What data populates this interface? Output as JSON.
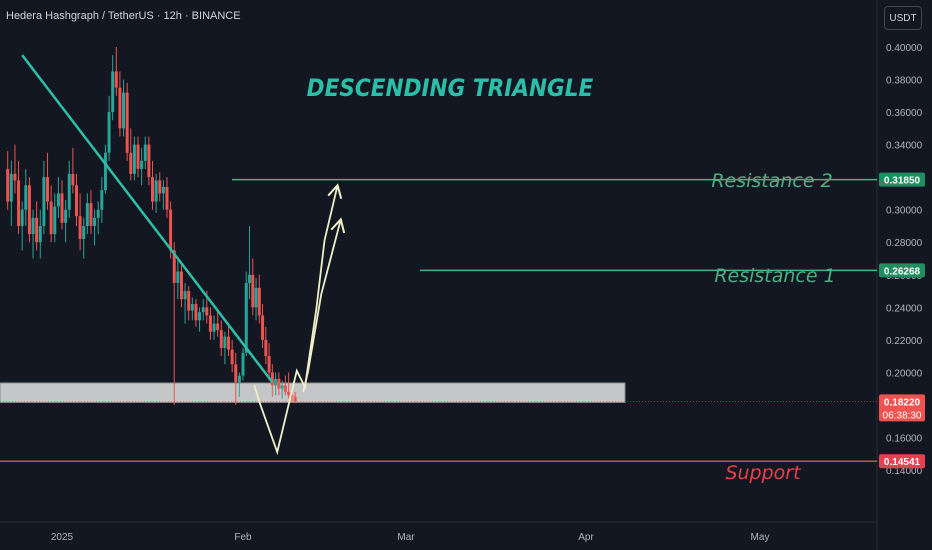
{
  "header": {
    "symbol_line": "Hedera Hashgraph / TetherUS · 12h · BINANCE",
    "currency_button": "USDT"
  },
  "annotations": {
    "pattern_title": "DESCENDING TRIANGLE",
    "resistance2_label": "Resistance 2",
    "resistance1_label": "Resistance 1",
    "support_label": "Support"
  },
  "price_tags": {
    "resistance2": "0.31850",
    "resistance1": "0.26268",
    "current_price": "0.18220",
    "countdown": "06:38:30",
    "support": "0.14541"
  },
  "colors": {
    "background": "#131722",
    "up": "#26a69a",
    "down": "#ef5350",
    "resistance_line": "#4caf82",
    "trendline": "#2bbfa9",
    "support_line": "#e8404e",
    "projection": "#f0f0c8",
    "zone": "#d9d9d9"
  },
  "chart_data": {
    "type": "candlestick",
    "y_axis": {
      "ticks": [
        "0.40000",
        "0.38000",
        "0.36000",
        "0.34000",
        "0.32000",
        "0.30000",
        "0.28000",
        "0.26000",
        "0.24000",
        "0.22000",
        "0.20000",
        "0.16000",
        "0.14000"
      ],
      "ylim": [
        0.135,
        0.405
      ]
    },
    "x_axis": {
      "ticks": [
        "2025",
        "Feb",
        "Mar",
        "Apr",
        "May"
      ]
    },
    "levels": {
      "resistance2": 0.3185,
      "resistance1": 0.26268,
      "support": 0.14541,
      "current": 0.1822,
      "support_zone": [
        0.1815,
        0.1935
      ]
    },
    "trendline": [
      [
        -0.22,
        0.395
      ],
      [
        1.18,
        0.194
      ]
    ],
    "projection_path_1": [
      [
        1.07,
        0.192
      ],
      [
        1.1,
        0.182
      ],
      [
        1.21,
        0.151
      ],
      [
        1.33,
        0.201
      ],
      [
        1.38,
        0.191
      ],
      [
        1.45,
        0.239
      ],
      [
        1.5,
        0.281
      ],
      [
        1.58,
        0.315
      ]
    ],
    "projection_path_2": [
      [
        1.4,
        0.201
      ],
      [
        1.48,
        0.248
      ],
      [
        1.6,
        0.294
      ]
    ],
    "projection_path_2_start": [
      [
        1.37,
        0.188
      ],
      [
        1.4,
        0.201
      ]
    ],
    "arrow_heads": [
      [
        1.58,
        0.315
      ],
      [
        1.6,
        0.294
      ]
    ],
    "candles_approx_month_offsets": [
      0.0,
      1.0,
      2.0
    ],
    "candles": [
      [
        -0.3,
        0.325,
        0.336,
        0.3,
        0.305
      ],
      [
        -0.28,
        0.305,
        0.33,
        0.29,
        0.322
      ],
      [
        -0.26,
        0.322,
        0.34,
        0.31,
        0.318
      ],
      [
        -0.24,
        0.318,
        0.33,
        0.285,
        0.29
      ],
      [
        -0.22,
        0.29,
        0.305,
        0.275,
        0.3
      ],
      [
        -0.2,
        0.3,
        0.325,
        0.29,
        0.315
      ],
      [
        -0.18,
        0.315,
        0.32,
        0.28,
        0.285
      ],
      [
        -0.16,
        0.285,
        0.3,
        0.27,
        0.295
      ],
      [
        -0.14,
        0.295,
        0.305,
        0.275,
        0.28
      ],
      [
        -0.12,
        0.28,
        0.3,
        0.27,
        0.29
      ],
      [
        -0.1,
        0.29,
        0.33,
        0.285,
        0.32
      ],
      [
        -0.08,
        0.32,
        0.335,
        0.3,
        0.305
      ],
      [
        -0.06,
        0.305,
        0.315,
        0.28,
        0.285
      ],
      [
        -0.04,
        0.285,
        0.31,
        0.28,
        0.302
      ],
      [
        -0.02,
        0.302,
        0.32,
        0.295,
        0.31
      ],
      [
        0.0,
        0.31,
        0.318,
        0.288,
        0.292
      ],
      [
        0.02,
        0.292,
        0.306,
        0.28,
        0.3
      ],
      [
        0.04,
        0.3,
        0.33,
        0.295,
        0.322
      ],
      [
        0.06,
        0.322,
        0.338,
        0.31,
        0.315
      ],
      [
        0.08,
        0.315,
        0.322,
        0.29,
        0.296
      ],
      [
        0.1,
        0.296,
        0.31,
        0.275,
        0.282
      ],
      [
        0.12,
        0.282,
        0.295,
        0.27,
        0.29
      ],
      [
        0.14,
        0.29,
        0.31,
        0.285,
        0.304
      ],
      [
        0.16,
        0.304,
        0.312,
        0.285,
        0.29
      ],
      [
        0.18,
        0.29,
        0.3,
        0.278,
        0.295
      ],
      [
        0.2,
        0.295,
        0.305,
        0.285,
        0.3
      ],
      [
        0.22,
        0.3,
        0.32,
        0.292,
        0.312
      ],
      [
        0.24,
        0.312,
        0.34,
        0.31,
        0.335
      ],
      [
        0.26,
        0.335,
        0.37,
        0.33,
        0.36
      ],
      [
        0.28,
        0.36,
        0.395,
        0.355,
        0.385
      ],
      [
        0.3,
        0.385,
        0.4,
        0.37,
        0.375
      ],
      [
        0.32,
        0.375,
        0.385,
        0.345,
        0.35
      ],
      [
        0.34,
        0.35,
        0.38,
        0.345,
        0.372
      ],
      [
        0.36,
        0.372,
        0.378,
        0.33,
        0.335
      ],
      [
        0.38,
        0.335,
        0.35,
        0.318,
        0.322
      ],
      [
        0.4,
        0.322,
        0.345,
        0.318,
        0.34
      ],
      [
        0.42,
        0.34,
        0.345,
        0.32,
        0.325
      ],
      [
        0.44,
        0.325,
        0.338,
        0.315,
        0.33
      ],
      [
        0.46,
        0.33,
        0.345,
        0.325,
        0.34
      ],
      [
        0.48,
        0.34,
        0.345,
        0.315,
        0.32
      ],
      [
        0.5,
        0.32,
        0.33,
        0.3,
        0.305
      ],
      [
        0.52,
        0.305,
        0.322,
        0.298,
        0.318
      ],
      [
        0.54,
        0.318,
        0.323,
        0.305,
        0.31
      ],
      [
        0.56,
        0.31,
        0.318,
        0.3,
        0.314
      ],
      [
        0.58,
        0.314,
        0.32,
        0.295,
        0.3
      ],
      [
        0.6,
        0.3,
        0.305,
        0.27,
        0.275
      ],
      [
        0.62,
        0.275,
        0.28,
        0.18,
        0.255
      ],
      [
        0.64,
        0.255,
        0.27,
        0.245,
        0.262
      ],
      [
        0.66,
        0.262,
        0.268,
        0.24,
        0.245
      ],
      [
        0.68,
        0.245,
        0.255,
        0.23,
        0.25
      ],
      [
        0.7,
        0.25,
        0.253,
        0.232,
        0.238
      ],
      [
        0.72,
        0.238,
        0.246,
        0.232,
        0.242
      ],
      [
        0.74,
        0.242,
        0.245,
        0.228,
        0.232
      ],
      [
        0.76,
        0.232,
        0.24,
        0.225,
        0.237
      ],
      [
        0.78,
        0.237,
        0.245,
        0.232,
        0.24
      ],
      [
        0.8,
        0.24,
        0.25,
        0.23,
        0.235
      ],
      [
        0.82,
        0.235,
        0.24,
        0.22,
        0.225
      ],
      [
        0.84,
        0.225,
        0.235,
        0.22,
        0.23
      ],
      [
        0.86,
        0.23,
        0.238,
        0.222,
        0.226
      ],
      [
        0.88,
        0.226,
        0.232,
        0.21,
        0.215
      ],
      [
        0.9,
        0.215,
        0.225,
        0.205,
        0.222
      ],
      [
        0.92,
        0.222,
        0.228,
        0.21,
        0.214
      ],
      [
        0.94,
        0.214,
        0.22,
        0.2,
        0.205
      ],
      [
        0.96,
        0.205,
        0.212,
        0.18,
        0.194
      ],
      [
        0.98,
        0.194,
        0.2,
        0.185,
        0.198
      ],
      [
        1.0,
        0.198,
        0.215,
        0.195,
        0.212
      ],
      [
        1.02,
        0.212,
        0.262,
        0.21,
        0.255
      ],
      [
        1.04,
        0.255,
        0.29,
        0.245,
        0.26
      ],
      [
        1.06,
        0.26,
        0.27,
        0.235,
        0.24
      ],
      [
        1.08,
        0.24,
        0.258,
        0.232,
        0.252
      ],
      [
        1.1,
        0.252,
        0.26,
        0.23,
        0.235
      ],
      [
        1.12,
        0.235,
        0.242,
        0.215,
        0.22
      ],
      [
        1.14,
        0.22,
        0.228,
        0.205,
        0.21
      ],
      [
        1.16,
        0.21,
        0.218,
        0.195,
        0.2
      ],
      [
        1.18,
        0.2,
        0.205,
        0.185,
        0.192
      ],
      [
        1.2,
        0.192,
        0.2,
        0.186,
        0.196
      ],
      [
        1.22,
        0.196,
        0.2,
        0.186,
        0.19
      ],
      [
        1.24,
        0.19,
        0.195,
        0.184,
        0.192
      ],
      [
        1.26,
        0.192,
        0.198,
        0.186,
        0.188
      ],
      [
        1.28,
        0.188,
        0.2,
        0.184,
        0.186
      ],
      [
        1.3,
        0.186,
        0.19,
        0.182,
        0.185
      ],
      [
        1.32,
        0.185,
        0.188,
        0.181,
        0.1822
      ]
    ]
  }
}
